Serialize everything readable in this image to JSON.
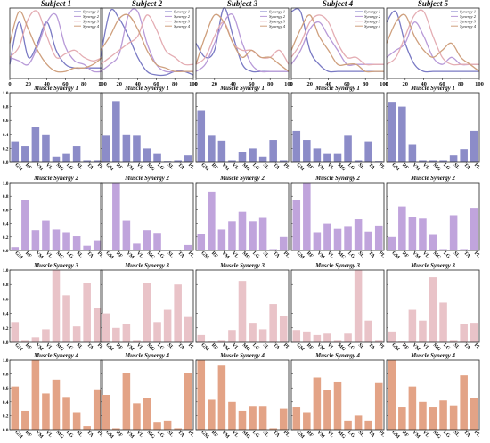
{
  "figure": {
    "subjects": [
      "Subject 1",
      "Subject 2",
      "Subject 3",
      "Subject 4",
      "Subject 5"
    ],
    "synergy_titles": [
      "Muscle Synergy 1",
      "Muscle Synergy 2",
      "Muscle Synergy 3",
      "Muscle Synergy 4"
    ],
    "colors": {
      "syn1": "#8c8cc8",
      "syn2": "#c0a4dc",
      "syn3": "#e9c3c8",
      "syn4": "#e3a386",
      "line1": "#7a7ac4",
      "line2": "#b89ad8",
      "line3": "#e4adb3",
      "line4": "#cfa07e"
    }
  },
  "chart_data": {
    "type": "bar",
    "activation": {
      "type": "line",
      "x": [
        0,
        10,
        20,
        30,
        40,
        50,
        60,
        70,
        80,
        90,
        100
      ],
      "xticks": [
        0,
        20,
        40,
        60,
        80,
        100
      ],
      "xlim": [
        0,
        100
      ],
      "ylim": [
        0,
        1
      ],
      "legend": [
        "Synergy 1",
        "Synergy 2",
        "Synergy 3",
        "Synergy 4"
      ],
      "subjects": [
        {
          "name": "Subject 1",
          "series": [
            {
              "name": "Synergy 1",
              "values": [
                0.2,
                0.8,
                0.3,
                0.5,
                0.8,
                0.4,
                0.2,
                0.15,
                0.15,
                0.15,
                0.15
              ]
            },
            {
              "name": "Synergy 2",
              "values": [
                0.3,
                0.25,
                0.2,
                0.45,
                0.8,
                0.9,
                0.45,
                0.25,
                0.2,
                0.1,
                0.1
              ]
            },
            {
              "name": "Synergy 3",
              "values": [
                0.3,
                0.45,
                0.85,
                0.95,
                0.6,
                0.3,
                0.35,
                0.4,
                0.3,
                0.25,
                0.3
              ]
            },
            {
              "name": "Synergy 4",
              "values": [
                0.5,
                0.95,
                0.7,
                0.4,
                0.2,
                0.1,
                0.1,
                0.15,
                0.15,
                0.2,
                0.3
              ]
            }
          ]
        },
        {
          "name": "Subject 2",
          "series": [
            {
              "name": "Synergy 1",
              "values": [
                0.3,
                0.95,
                0.85,
                0.6,
                0.3,
                0.1,
                0.05,
                0.05,
                0.1,
                0.1,
                0.05
              ]
            },
            {
              "name": "Synergy 2",
              "values": [
                0.1,
                0.2,
                0.35,
                0.9,
                0.95,
                0.5,
                0.2,
                0.1,
                0.1,
                0.1,
                0.1
              ]
            },
            {
              "name": "Synergy 3",
              "values": [
                0.2,
                0.3,
                0.4,
                0.5,
                0.6,
                0.9,
                0.7,
                0.4,
                0.3,
                0.2,
                0.2
              ]
            },
            {
              "name": "Synergy 4",
              "values": [
                0.4,
                0.6,
                0.85,
                0.9,
                0.7,
                0.4,
                0.2,
                0.15,
                0.1,
                0.1,
                0.1
              ]
            }
          ]
        },
        {
          "name": "Subject 3",
          "series": [
            {
              "name": "Synergy 1",
              "values": [
                0.5,
                0.3,
                0.4,
                1.0,
                0.6,
                0.2,
                0.1,
                0.1,
                0.1,
                0.1,
                0.1
              ]
            },
            {
              "name": "Synergy 2",
              "values": [
                0.1,
                0.2,
                0.5,
                0.8,
                0.9,
                0.5,
                0.2,
                0.1,
                0.1,
                0.1,
                0.1
              ]
            },
            {
              "name": "Synergy 3",
              "values": [
                0.2,
                0.3,
                0.6,
                0.8,
                0.5,
                0.4,
                0.4,
                0.3,
                0.3,
                0.4,
                0.2
              ]
            },
            {
              "name": "Synergy 4",
              "values": [
                0.2,
                0.6,
                0.9,
                0.8,
                0.5,
                0.3,
                0.4,
                0.3,
                0.3,
                0.2,
                0.1
              ]
            }
          ]
        },
        {
          "name": "Subject 4",
          "series": [
            {
              "name": "Synergy 1",
              "values": [
                0.95,
                0.95,
                0.4,
                0.2,
                0.1,
                0.1,
                0.1,
                0.1,
                0.1,
                0.1,
                0.1
              ]
            },
            {
              "name": "Synergy 2",
              "values": [
                0.2,
                0.4,
                0.7,
                0.8,
                0.6,
                0.4,
                0.2,
                0.2,
                0.2,
                0.2,
                0.2
              ]
            },
            {
              "name": "Synergy 3",
              "values": [
                0.3,
                0.5,
                0.8,
                0.9,
                0.8,
                0.5,
                0.3,
                0.3,
                0.2,
                0.2,
                0.2
              ]
            },
            {
              "name": "Synergy 4",
              "values": [
                0.4,
                0.7,
                0.9,
                0.6,
                0.4,
                0.2,
                0.2,
                0.2,
                0.1,
                0.1,
                0.1
              ]
            }
          ]
        },
        {
          "name": "Subject 5",
          "series": [
            {
              "name": "Synergy 1",
              "values": [
                0.8,
                0.95,
                0.5,
                0.2,
                0.1,
                0.1,
                0.1,
                0.1,
                0.1,
                0.1,
                0.1
              ]
            },
            {
              "name": "Synergy 2",
              "values": [
                0.3,
                0.4,
                0.5,
                0.8,
                0.6,
                0.3,
                0.2,
                0.3,
                0.2,
                0.2,
                0.2
              ]
            },
            {
              "name": "Synergy 3",
              "values": [
                0.2,
                0.3,
                0.6,
                0.9,
                0.95,
                0.6,
                0.3,
                0.2,
                0.2,
                0.2,
                0.2
              ]
            },
            {
              "name": "Synergy 4",
              "values": [
                0.5,
                0.8,
                0.9,
                0.6,
                0.4,
                0.3,
                0.4,
                0.5,
                0.3,
                0.2,
                0.1
              ]
            }
          ]
        }
      ]
    },
    "muscle_weights": {
      "categories": [
        "GM",
        "RF",
        "VM",
        "VL",
        "MG",
        "LG",
        "SL",
        "TA",
        "PL"
      ],
      "ylim": [
        0,
        1
      ],
      "yticks": [
        0,
        0.2,
        0.4,
        0.6,
        0.8,
        1.0
      ],
      "subjects": [
        {
          "name": "Subject 1",
          "synergies": [
            [
              0.3,
              0.23,
              0.5,
              0.4,
              0.08,
              0.12,
              0.23,
              0.02,
              0.02
            ],
            [
              0.05,
              0.75,
              0.3,
              0.44,
              0.31,
              0.27,
              0.21,
              0.07,
              0.15
            ],
            [
              0.28,
              0.02,
              0.07,
              0.18,
              1.0,
              0.65,
              0.22,
              0.82,
              0.48
            ],
            [
              0.62,
              0.27,
              1.0,
              0.52,
              0.72,
              0.47,
              0.25,
              0.05,
              0.58
            ]
          ]
        },
        {
          "name": "Subject 2",
          "synergies": [
            [
              0.38,
              0.88,
              0.4,
              0.38,
              0.2,
              0.12,
              0.01,
              0.02,
              0.1
            ],
            [
              0.01,
              1.0,
              0.44,
              0.1,
              0.3,
              0.26,
              0.01,
              0.01,
              0.08
            ],
            [
              0.4,
              0.2,
              0.25,
              0.02,
              0.82,
              0.28,
              0.45,
              0.8,
              0.35
            ],
            [
              0.5,
              0.02,
              0.82,
              0.38,
              0.45,
              0.1,
              0.13,
              0.02,
              0.82
            ]
          ]
        },
        {
          "name": "Subject 3",
          "synergies": [
            [
              0.75,
              0.38,
              0.31,
              0.02,
              0.15,
              0.2,
              0.08,
              0.32,
              0.02
            ],
            [
              0.25,
              0.87,
              0.31,
              0.43,
              0.57,
              0.43,
              0.48,
              0.02,
              0.2
            ],
            [
              0.1,
              0.01,
              0.02,
              0.17,
              0.85,
              0.27,
              0.18,
              0.53,
              0.37
            ],
            [
              1.0,
              0.43,
              0.92,
              0.4,
              0.27,
              0.33,
              0.33,
              0.02,
              0.3
            ]
          ]
        },
        {
          "name": "Subject 4",
          "synergies": [
            [
              0.45,
              0.32,
              0.2,
              0.12,
              0.12,
              0.38,
              0.02,
              0.3,
              0.01
            ],
            [
              0.75,
              1.0,
              0.27,
              0.4,
              0.32,
              0.35,
              0.46,
              0.28,
              0.37
            ],
            [
              0.17,
              0.15,
              0.1,
              0.12,
              0.02,
              0.12,
              1.0,
              0.3,
              0.02
            ],
            [
              0.32,
              0.25,
              0.75,
              0.57,
              0.68,
              0.13,
              0.2,
              0.13,
              0.67
            ]
          ]
        },
        {
          "name": "Subject 5",
          "synergies": [
            [
              0.87,
              0.8,
              0.25,
              0.02,
              0.02,
              0.02,
              0.1,
              0.19,
              0.45
            ],
            [
              0.2,
              0.65,
              0.5,
              0.47,
              0.23,
              0.02,
              0.52,
              0.02,
              0.63
            ],
            [
              0.15,
              0.01,
              0.45,
              0.3,
              0.9,
              0.55,
              0.02,
              0.25,
              0.27
            ],
            [
              1.0,
              0.32,
              0.62,
              0.4,
              0.32,
              0.42,
              0.35,
              0.78,
              0.45
            ]
          ]
        }
      ]
    }
  }
}
